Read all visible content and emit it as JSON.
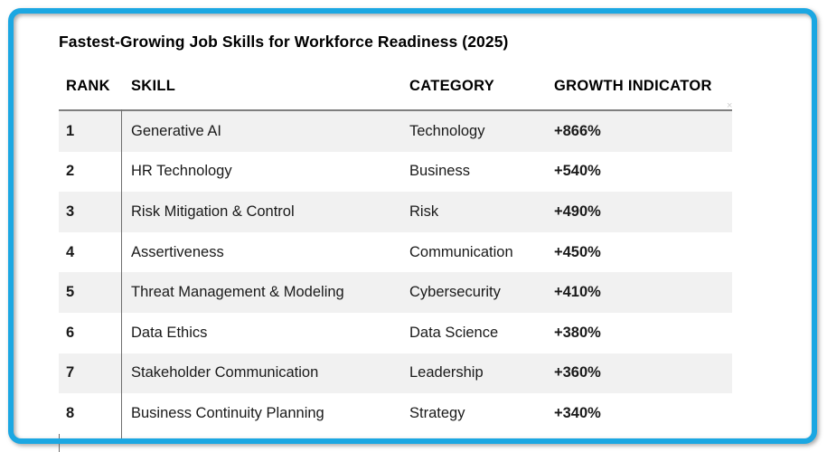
{
  "title": "Fastest-Growing Job Skills for Workforce Readiness (2025)",
  "table": {
    "headers": {
      "rank": "RANK",
      "skill": "SKILL",
      "category": "CATEGORY",
      "growth": "GROWTH INDICATOR"
    },
    "rows": [
      {
        "rank": "1",
        "skill": "Generative AI",
        "category": "Technology",
        "growth": "+866%"
      },
      {
        "rank": "2",
        "skill": "HR Technology",
        "category": "Business",
        "growth": "+540%"
      },
      {
        "rank": "3",
        "skill": "Risk Mitigation & Control",
        "category": "Risk",
        "growth": "+490%"
      },
      {
        "rank": "4",
        "skill": "Assertiveness",
        "category": "Communication",
        "growth": "+450%"
      },
      {
        "rank": "5",
        "skill": "Threat Management & Modeling",
        "category": "Cybersecurity",
        "growth": "+410%"
      },
      {
        "rank": "6",
        "skill": "Data Ethics",
        "category": "Data Science",
        "growth": "+380%"
      },
      {
        "rank": "7",
        "skill": "Stakeholder Communication",
        "category": "Leadership",
        "growth": "+360%"
      },
      {
        "rank": "8",
        "skill": "Business Continuity Planning",
        "category": "Strategy",
        "growth": "+340%"
      }
    ]
  },
  "artifacts": {
    "resize_mark": "×"
  },
  "colors": {
    "frame_border": "#1ba7e2",
    "row_stripe": "#f1f1f1",
    "header_rule": "#7f7f7f",
    "divider": "#6e6e6e",
    "text": "#1a1a1a"
  }
}
